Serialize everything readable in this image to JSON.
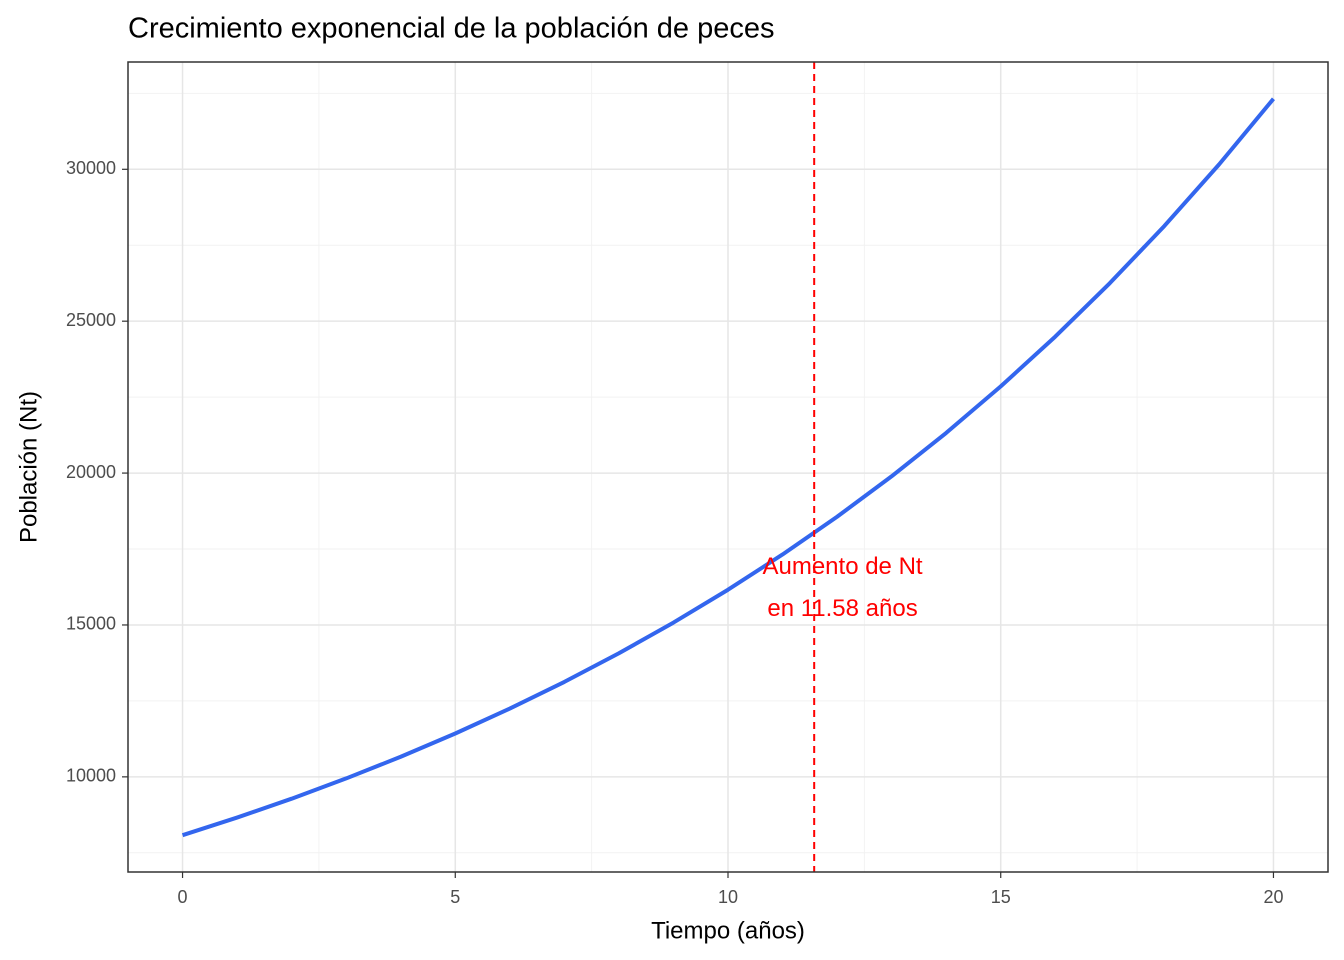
{
  "chart_data": {
    "type": "line",
    "title": "Crecimiento exponencial de la población de peces",
    "x_label": "Tiempo (años)",
    "y_label": "Población (Nt)",
    "x": [
      0,
      1,
      2,
      3,
      4,
      5,
      6,
      7,
      8,
      9,
      10,
      11,
      12,
      13,
      14,
      15,
      16,
      17,
      18,
      19,
      20
    ],
    "series": [
      {
        "color": "#3366ee",
        "values": [
          8080,
          8660,
          9281,
          9948,
          10662,
          11427,
          12247,
          13126,
          14068,
          15078,
          16160,
          17320,
          18562,
          19895,
          21323,
          22853,
          24493,
          26251,
          28135,
          30154,
          32320
        ]
      }
    ],
    "xlim": [
      -1,
      21
    ],
    "ylim": [
      6868,
      33532
    ],
    "xticks": [
      0,
      5,
      10,
      15,
      20
    ],
    "yticks": [
      10000,
      15000,
      20000,
      25000,
      30000
    ],
    "minor_xticks": [
      2.5,
      7.5,
      12.5,
      17.5
    ],
    "minor_yticks": [
      7500,
      12500,
      17500,
      22500,
      27500,
      32500
    ],
    "grid": true,
    "vline": {
      "x": 11.58,
      "color": "#ff0000"
    },
    "annotation": {
      "lines": [
        "Aumento de Nt",
        "en 11.58 años"
      ],
      "x": 12.1,
      "y": 16200,
      "color": "#ff0000"
    }
  }
}
